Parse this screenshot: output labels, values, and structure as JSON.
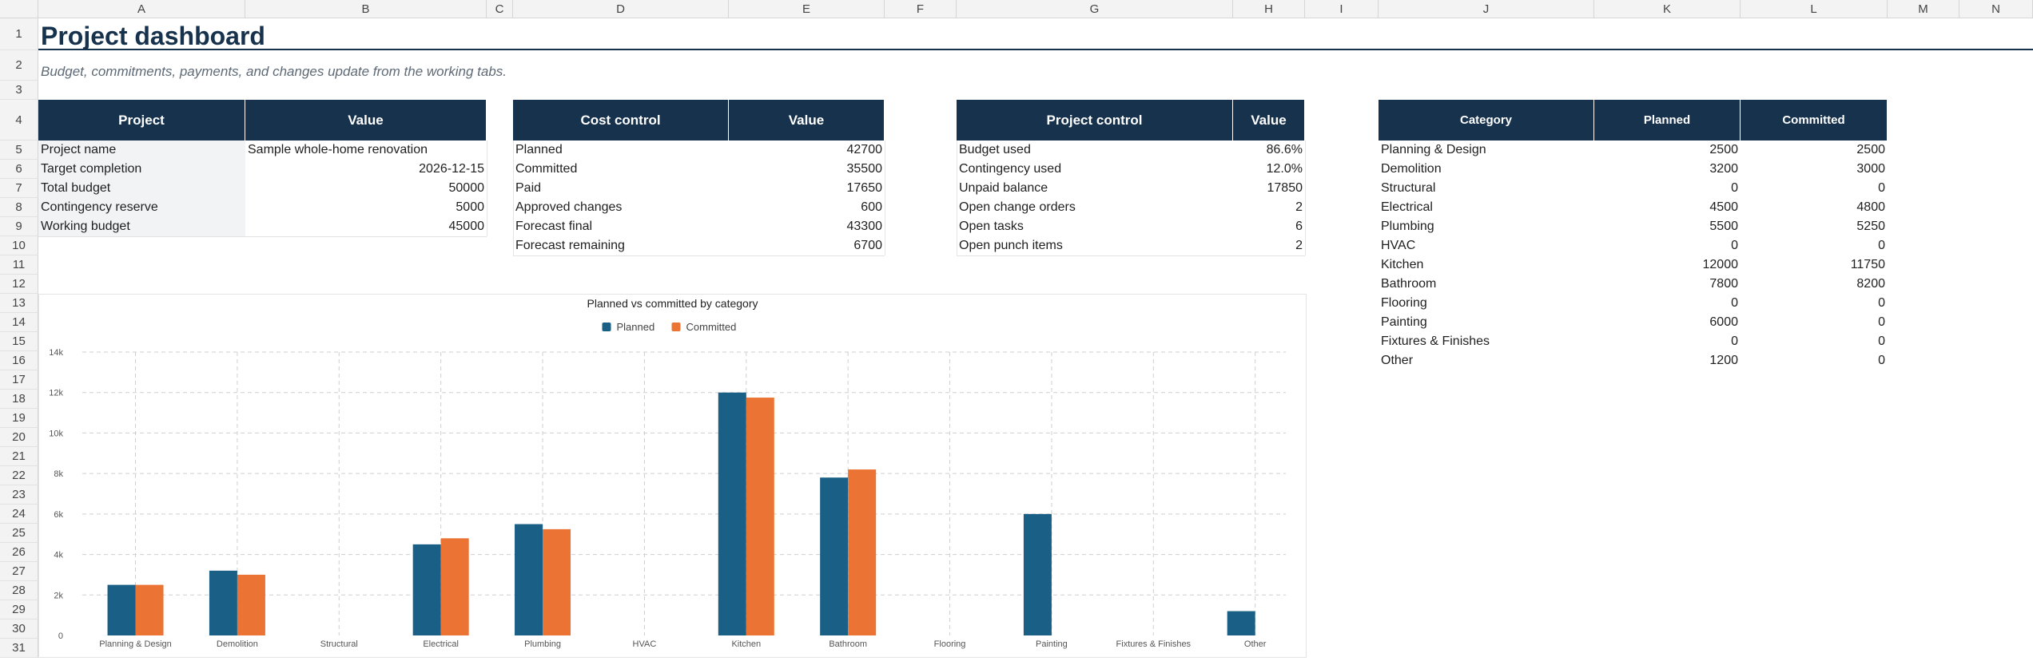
{
  "sheet": {
    "columns": [
      "A",
      "B",
      "C",
      "D",
      "E",
      "F",
      "G",
      "H",
      "I",
      "J",
      "K",
      "L",
      "M",
      "N"
    ],
    "rows": [
      "1",
      "2",
      "3",
      "4",
      "5",
      "6",
      "7",
      "8",
      "9",
      "10",
      "11",
      "12",
      "13",
      "14",
      "15",
      "16",
      "17",
      "18",
      "19",
      "20",
      "21",
      "22",
      "23",
      "24",
      "25",
      "26",
      "27",
      "28",
      "29",
      "30",
      "31"
    ]
  },
  "title": "Project dashboard",
  "subtitle": "Budget, commitments, payments, and changes update from the working tabs.",
  "project_table": {
    "headers": [
      "Project",
      "Value"
    ],
    "rows": [
      {
        "label": "Project name",
        "value": "Sample whole-home renovation"
      },
      {
        "label": "Target completion",
        "value": "2026-12-15"
      },
      {
        "label": "Total budget",
        "value": "50000"
      },
      {
        "label": "Contingency reserve",
        "value": "5000"
      },
      {
        "label": "Working budget",
        "value": "45000"
      }
    ]
  },
  "cost_table": {
    "headers": [
      "Cost control",
      "Value"
    ],
    "rows": [
      {
        "label": "Planned",
        "value": "42700"
      },
      {
        "label": "Committed",
        "value": "35500"
      },
      {
        "label": "Paid",
        "value": "17650"
      },
      {
        "label": "Approved changes",
        "value": "600"
      },
      {
        "label": "Forecast final",
        "value": "43300"
      },
      {
        "label": "Forecast remaining",
        "value": "6700"
      }
    ]
  },
  "control_table": {
    "headers": [
      "Project control",
      "Value"
    ],
    "rows": [
      {
        "label": "Budget used",
        "value": "86.6%"
      },
      {
        "label": "Contingency used",
        "value": "12.0%"
      },
      {
        "label": "Unpaid balance",
        "value": "17850"
      },
      {
        "label": "Open change orders",
        "value": "2"
      },
      {
        "label": "Open tasks",
        "value": "6"
      },
      {
        "label": "Open punch items",
        "value": "2"
      }
    ]
  },
  "category_table": {
    "headers": [
      "Category",
      "Planned",
      "Committed"
    ],
    "rows": [
      {
        "category": "Planning & Design",
        "planned": "2500",
        "committed": "2500"
      },
      {
        "category": "Demolition",
        "planned": "3200",
        "committed": "3000"
      },
      {
        "category": "Structural",
        "planned": "0",
        "committed": "0"
      },
      {
        "category": "Electrical",
        "planned": "4500",
        "committed": "4800"
      },
      {
        "category": "Plumbing",
        "planned": "5500",
        "committed": "5250"
      },
      {
        "category": "HVAC",
        "planned": "0",
        "committed": "0"
      },
      {
        "category": "Kitchen",
        "planned": "12000",
        "committed": "11750"
      },
      {
        "category": "Bathroom",
        "planned": "7800",
        "committed": "8200"
      },
      {
        "category": "Flooring",
        "planned": "0",
        "committed": "0"
      },
      {
        "category": "Painting",
        "planned": "6000",
        "committed": "0"
      },
      {
        "category": "Fixtures & Finishes",
        "planned": "0",
        "committed": "0"
      },
      {
        "category": "Other",
        "planned": "1200",
        "committed": "0"
      }
    ]
  },
  "colors": {
    "header_bg": "#17324d",
    "planned": "#1a5f86",
    "committed": "#eb7434",
    "label_bg": "#f1f3f5"
  },
  "chart_data": {
    "type": "bar",
    "title": "Planned vs committed by category",
    "categories": [
      "Planning & Design",
      "Demolition",
      "Structural",
      "Electrical",
      "Plumbing",
      "HVAC",
      "Kitchen",
      "Bathroom",
      "Flooring",
      "Painting",
      "Fixtures & Finishes",
      "Other"
    ],
    "series": [
      {
        "name": "Planned",
        "values": [
          2500,
          3200,
          0,
          4500,
          5500,
          0,
          12000,
          7800,
          0,
          6000,
          0,
          1200
        ]
      },
      {
        "name": "Committed",
        "values": [
          2500,
          3000,
          0,
          4800,
          5250,
          0,
          11750,
          8200,
          0,
          0,
          0,
          0
        ]
      }
    ],
    "yticks": [
      "0",
      "2k",
      "4k",
      "6k",
      "8k",
      "10k",
      "12k",
      "14k"
    ],
    "ylim": [
      0,
      14000
    ],
    "grid": true,
    "legend": "top-center"
  }
}
